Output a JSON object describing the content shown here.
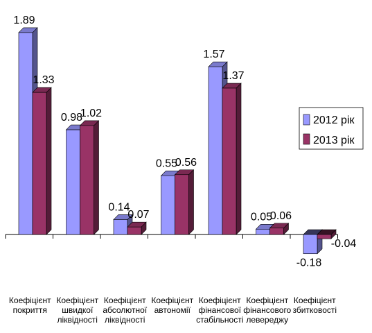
{
  "chart_data": {
    "type": "bar",
    "title": "",
    "xlabel": "",
    "ylabel": "",
    "ylim": [
      -0.25,
      2.0
    ],
    "grid": false,
    "legend_position": "right",
    "categories": [
      [
        "Коефіцієнт",
        "покриття"
      ],
      [
        "Коефіцієнт",
        "швидкої",
        "ліквідності"
      ],
      [
        "Коефіцієнт",
        "абсолютної",
        "ліквідності"
      ],
      [
        "Коефіцієнт",
        "автономії"
      ],
      [
        "Коефіцієнт",
        "фінансової",
        "стабільності"
      ],
      [
        "Коефіцієнт",
        "фінансового",
        "левереджу"
      ],
      [
        "Коефіцієнт",
        "збитковості"
      ]
    ],
    "series": [
      {
        "name": "2012 рік",
        "color": "#9999ff",
        "values": [
          1.89,
          0.98,
          0.14,
          0.55,
          1.57,
          0.05,
          -0.18
        ],
        "labels": [
          "1.89",
          "0.98",
          "0.14",
          "0.55",
          "1.57",
          "0.05",
          "-0.18"
        ]
      },
      {
        "name": "2013 рік",
        "color": "#993366",
        "values": [
          1.33,
          1.02,
          0.07,
          0.56,
          1.37,
          0.06,
          -0.04
        ],
        "labels": [
          "1.33",
          "1.02",
          "0.07",
          "0.56",
          "1.37",
          "0.06",
          "-0.04"
        ]
      }
    ]
  }
}
